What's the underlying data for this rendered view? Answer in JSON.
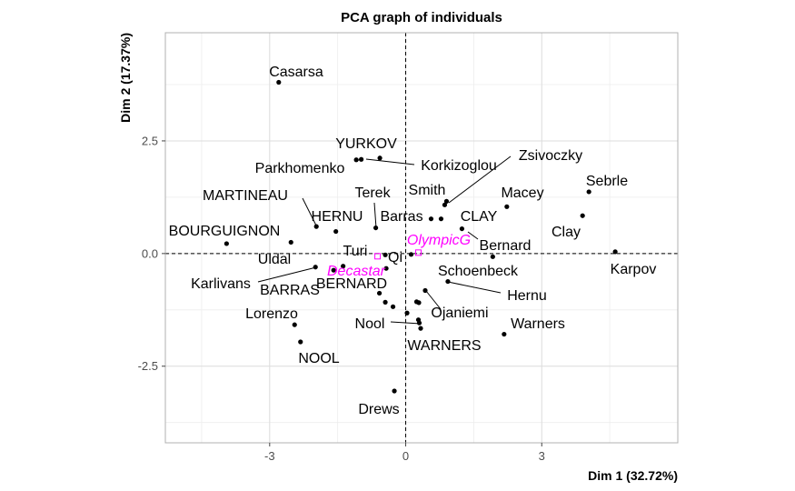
{
  "chart_data": {
    "type": "scatter",
    "title": "PCA graph of individuals",
    "xlabel": "Dim 1 (32.72%)",
    "ylabel": "Dim 2 (17.37%)",
    "xlim": [
      -5.3,
      6.0
    ],
    "ylim": [
      -4.2,
      4.9
    ],
    "x_ticks": [
      -3,
      0,
      3
    ],
    "x_tick_labels": [
      "-3",
      "0",
      "3"
    ],
    "y_ticks": [
      -2.5,
      0,
      2.5
    ],
    "y_tick_labels": [
      "-2.5",
      "0.0",
      "2.5"
    ],
    "grid": true,
    "reference_lines": {
      "x": 0,
      "y": 0
    },
    "colors": {
      "individuals": "#000000",
      "supplementary": "#ff00ff"
    },
    "individuals": [
      {
        "name": "Casarsa",
        "x": -2.8,
        "y": 3.8
      },
      {
        "name": "YURKOV",
        "x": -0.57,
        "y": 2.12
      },
      {
        "name": "Parkhomenko",
        "x": -1.09,
        "y": 2.08
      },
      {
        "name": "Korkizoglou",
        "x": -0.98,
        "y": 2.09
      },
      {
        "name": "Zsivoczky",
        "x": 0.9,
        "y": 1.16
      },
      {
        "name": "Smith",
        "x": 0.86,
        "y": 1.08
      },
      {
        "name": "Sebrle",
        "x": 4.04,
        "y": 1.37
      },
      {
        "name": "Macey",
        "x": 2.23,
        "y": 1.04
      },
      {
        "name": "MARTINEAU",
        "x": -1.97,
        "y": 0.6
      },
      {
        "name": "Terek",
        "x": -0.66,
        "y": 0.57
      },
      {
        "name": "HERNU",
        "x": -1.54,
        "y": 0.49
      },
      {
        "name": "Barras",
        "x": 0.56,
        "y": 0.77
      },
      {
        "name": "CLAY",
        "x": 0.78,
        "y": 0.77
      },
      {
        "name": "Clay",
        "x": 3.9,
        "y": 0.84
      },
      {
        "name": "BOURGUIGNON",
        "x": -3.95,
        "y": 0.22
      },
      {
        "name": "Uldal",
        "x": -2.53,
        "y": 0.25
      },
      {
        "name": "Bernard",
        "x": 1.24,
        "y": 0.55
      },
      {
        "name": "Karpov",
        "x": 4.62,
        "y": 0.04
      },
      {
        "name": "Turi",
        "x": -0.45,
        "y": -0.03
      },
      {
        "name": "Qi",
        "x": 0.12,
        "y": -0.02
      },
      {
        "name": "Schoenbeck",
        "x": 1.92,
        "y": -0.07
      },
      {
        "name": "Karlivans",
        "x": -1.99,
        "y": -0.3
      },
      {
        "name": "BARRAS",
        "x": -1.59,
        "y": -0.37
      },
      {
        "name": "BERNARD",
        "x": -0.43,
        "y": -0.33
      },
      {
        "name": "Hernu",
        "x": 0.93,
        "y": -0.62
      },
      {
        "name": "Lorenzo",
        "x": -2.45,
        "y": -1.58
      },
      {
        "name": "NOOL",
        "x": -2.32,
        "y": -1.96
      },
      {
        "name": "Ojaniemi",
        "x": 0.29,
        "y": -1.09
      },
      {
        "name": "Nool",
        "x": 0.3,
        "y": -1.54
      },
      {
        "name": "Warners",
        "x": 2.17,
        "y": -1.79
      },
      {
        "name": "WARNERS",
        "x": 0.33,
        "y": -1.66
      },
      {
        "name": "Drews",
        "x": -0.25,
        "y": -3.05
      }
    ],
    "unlabeled_points": [
      {
        "x": -0.58,
        "y": -0.88
      },
      {
        "x": -0.45,
        "y": -1.08
      },
      {
        "x": -0.28,
        "y": -1.18
      },
      {
        "x": 0.03,
        "y": -1.32
      },
      {
        "x": 0.28,
        "y": -1.47
      },
      {
        "x": 0.24,
        "y": -1.07
      },
      {
        "x": 0.43,
        "y": -0.82
      },
      {
        "x": -1.38,
        "y": -0.28
      }
    ],
    "supplementary": [
      {
        "name": "OlympicG",
        "x": 0.28,
        "y": 0.02
      },
      {
        "name": "Decastar",
        "x": -0.62,
        "y": -0.06
      }
    ]
  }
}
